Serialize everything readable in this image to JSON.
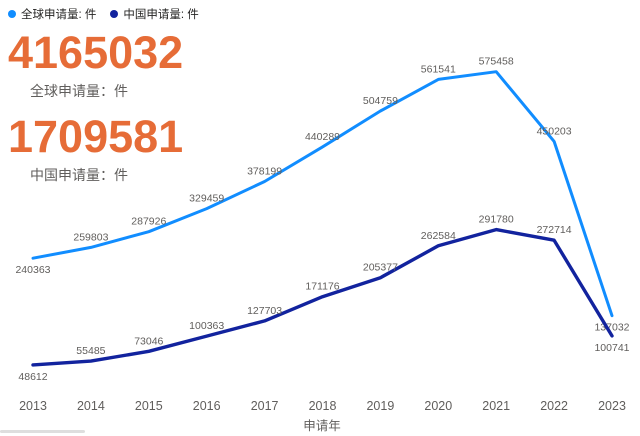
{
  "legend": {
    "items": [
      {
        "label": "全球申请量: 件",
        "color": "#118DFF"
      },
      {
        "label": "中国申请量: 件",
        "color": "#12239E"
      }
    ]
  },
  "cards": [
    {
      "value": "4165032",
      "label": "全球申请量：件"
    },
    {
      "value": "1709581",
      "label": "中国申请量：件"
    }
  ],
  "chart_data": {
    "type": "line",
    "x": [
      2013,
      2014,
      2015,
      2016,
      2017,
      2018,
      2019,
      2020,
      2021,
      2022,
      2023
    ],
    "xlabel": "申请年",
    "series": [
      {
        "name": "全球申请量: 件",
        "color": "#118DFF",
        "values": [
          240363,
          259803,
          287926,
          329459,
          378199,
          440289,
          504759,
          561541,
          575458,
          450203,
          137032
        ]
      },
      {
        "name": "中国申请量: 件",
        "color": "#12239E",
        "values": [
          48612,
          55485,
          73046,
          100363,
          127703,
          171176,
          205377,
          262584,
          291780,
          272714,
          100741
        ]
      }
    ],
    "ylim": [
      0,
      600000
    ],
    "data_labels": true,
    "grid": false,
    "legend_position": "top-left"
  },
  "colors": {
    "kpi_value": "#E66C37",
    "kpi_label": "#605E5C",
    "data_label": "#605E5C",
    "axis_text": "#605E5C",
    "legend_text": "#252423"
  }
}
